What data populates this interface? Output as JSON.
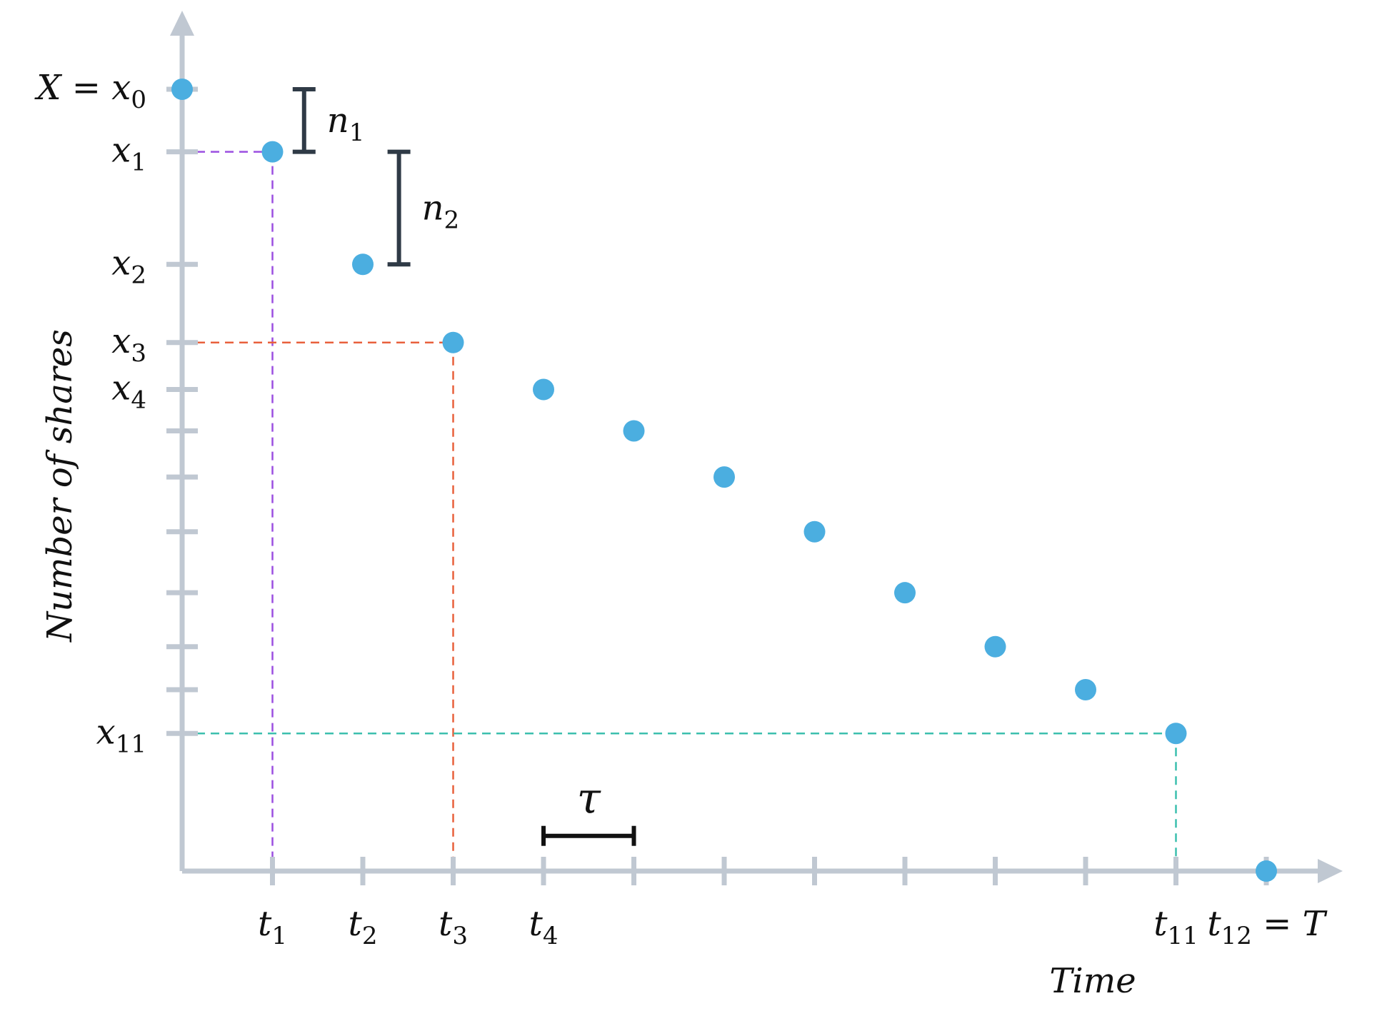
{
  "chart_data": {
    "type": "scatter",
    "title": "",
    "xlabel": "Time",
    "ylabel": "Number of shares",
    "grid": false,
    "legend": "none",
    "x": [
      0,
      1,
      2,
      3,
      4,
      5,
      6,
      7,
      8,
      9,
      10,
      11,
      12
    ],
    "y": [
      1.0,
      0.92,
      0.776,
      0.676,
      0.616,
      0.563,
      0.504,
      0.434,
      0.356,
      0.287,
      0.232,
      0.176,
      0.0
    ],
    "xlim": [
      0,
      12.9
    ],
    "ylim": [
      0,
      1.1
    ],
    "x_tick_positions": [
      1,
      2,
      3,
      4,
      5,
      6,
      7,
      8,
      9,
      10,
      11,
      12
    ],
    "y_tick_values": [
      1.0,
      0.92,
      0.776,
      0.676,
      0.616,
      0.563,
      0.504,
      0.434,
      0.356,
      0.287,
      0.232,
      0.176
    ],
    "x_tick_labels": [
      {
        "at": 1,
        "base": "t",
        "sub": "1",
        "suffix": ""
      },
      {
        "at": 2,
        "base": "t",
        "sub": "2",
        "suffix": ""
      },
      {
        "at": 3,
        "base": "t",
        "sub": "3",
        "suffix": ""
      },
      {
        "at": 4,
        "base": "t",
        "sub": "4",
        "suffix": ""
      },
      {
        "at": 11,
        "base": "t",
        "sub": "11",
        "suffix": ""
      },
      {
        "at": 12,
        "base": "t",
        "sub": "12",
        "suffix": " = T"
      }
    ],
    "y_tick_labels": [
      {
        "at": 1.0,
        "prefix": "X = ",
        "base": "x",
        "sub": "0"
      },
      {
        "at": 0.92,
        "prefix": "",
        "base": "x",
        "sub": "1"
      },
      {
        "at": 0.776,
        "prefix": "",
        "base": "x",
        "sub": "2"
      },
      {
        "at": 0.676,
        "prefix": "",
        "base": "x",
        "sub": "3"
      },
      {
        "at": 0.616,
        "prefix": "",
        "base": "x",
        "sub": "4"
      },
      {
        "at": 0.176,
        "prefix": "",
        "base": "x",
        "sub": "11"
      }
    ],
    "guides": [
      {
        "x": 1,
        "y": 0.92,
        "color": "#9b4fe0"
      },
      {
        "x": 3,
        "y": 0.676,
        "color": "#e8603c"
      },
      {
        "x": 11,
        "y": 0.176,
        "color": "#3cbfae"
      }
    ],
    "annotations": [
      {
        "kind": "bracket-vertical",
        "x": 1.35,
        "y1": 1.0,
        "y2": 0.92,
        "label_base": "n",
        "label_sub": "1"
      },
      {
        "kind": "bracket-vertical",
        "x": 2.4,
        "y1": 0.92,
        "y2": 0.776,
        "label_base": "n",
        "label_sub": "2"
      },
      {
        "kind": "bracket-horizontal",
        "x1": 4,
        "x2": 5,
        "y": 0.045,
        "label": "τ"
      }
    ],
    "colors": {
      "points": "#4baee0",
      "axis": "#c0c8d2",
      "bracket": "#2f3a46",
      "tau_bar": "#111111"
    }
  }
}
